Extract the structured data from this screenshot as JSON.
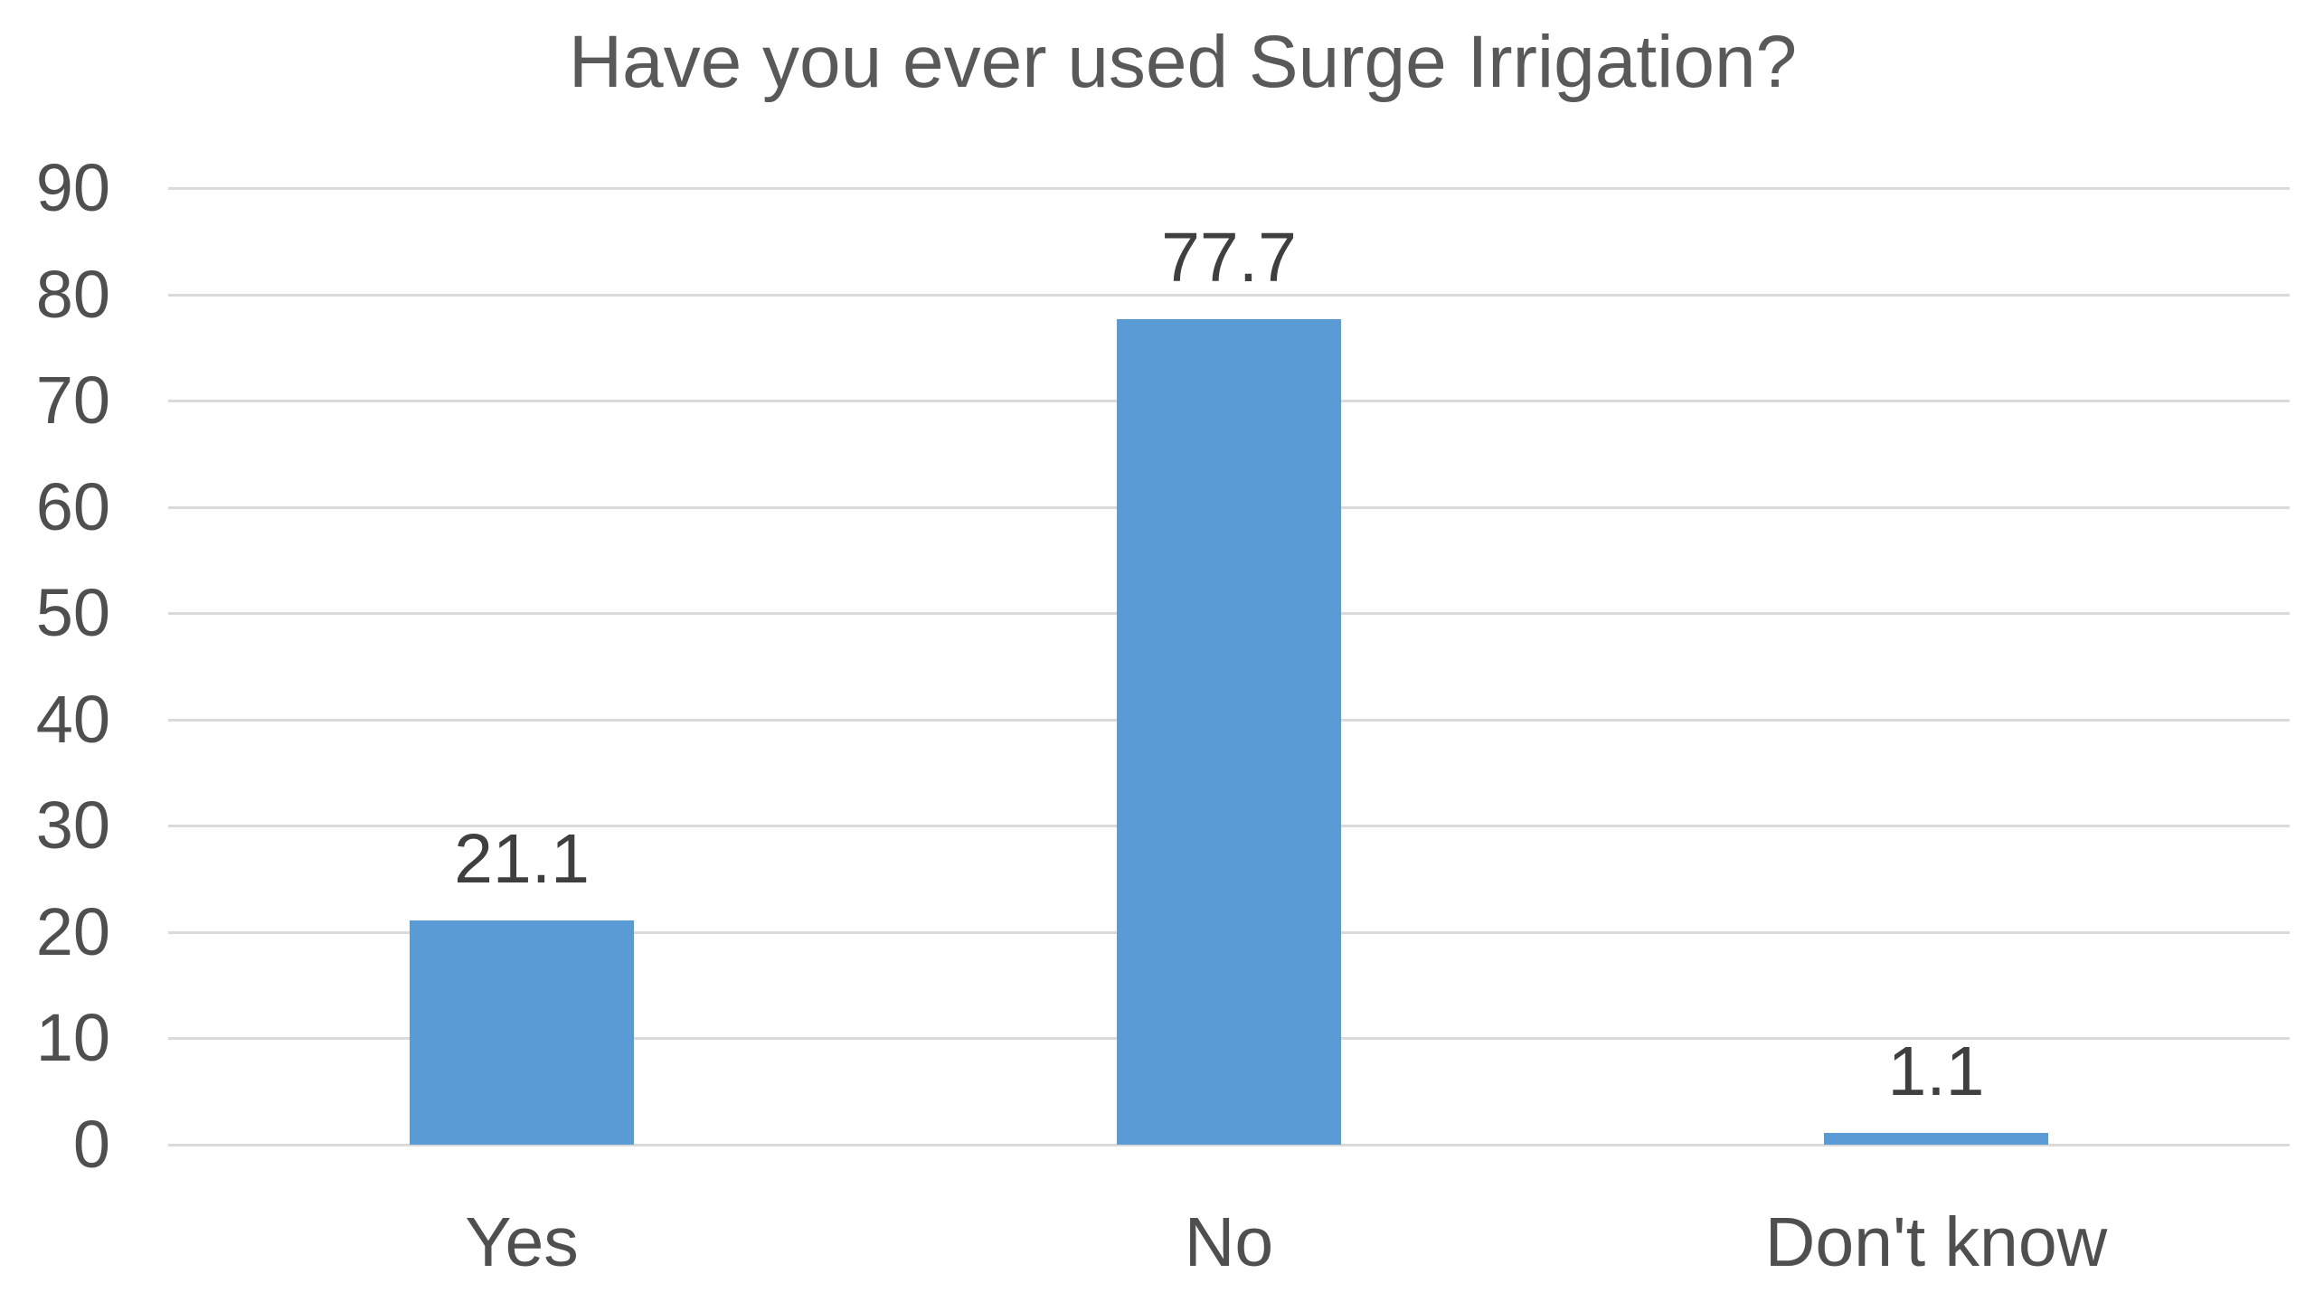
{
  "chart_data": {
    "type": "bar",
    "title": "Have you ever used Surge Irrigation?",
    "categories": [
      "Yes",
      "No",
      "Don't know"
    ],
    "values": [
      21.1,
      77.7,
      1.1
    ],
    "data_labels": [
      "21.1",
      "77.7",
      "1.1"
    ],
    "xlabel": "",
    "ylabel": "",
    "ylim": [
      0,
      90
    ],
    "yticks": [
      0,
      10,
      20,
      30,
      40,
      50,
      60,
      70,
      80,
      90
    ],
    "grid": true,
    "legend": false,
    "series_count": 1,
    "colors": {
      "bar": "#5b9bd5",
      "gridline": "#dadada",
      "axis_text": "#4f4f4f",
      "value_label_text": "#3f3f3f",
      "title_text": "#595959",
      "background": "#ffffff"
    }
  }
}
